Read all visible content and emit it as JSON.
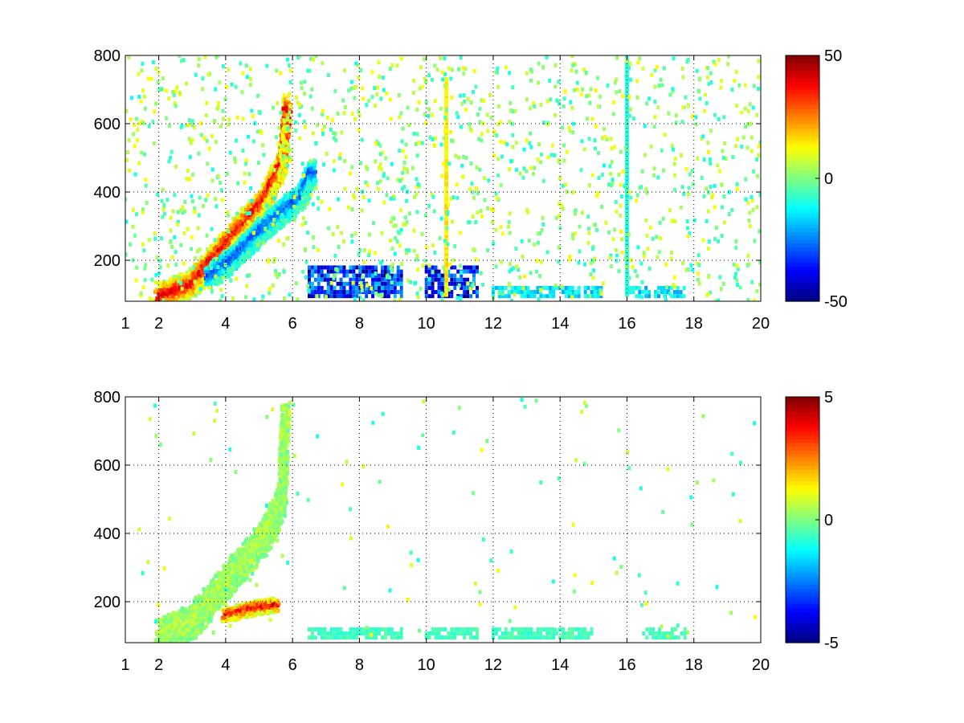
{
  "chart_data": [
    {
      "type": "heatmap",
      "title": "",
      "xlabel": "",
      "ylabel": "",
      "xlim": [
        1,
        20
      ],
      "ylim": [
        80,
        800
      ],
      "x_ticks": [
        1,
        2,
        4,
        6,
        8,
        10,
        12,
        14,
        16,
        18,
        20
      ],
      "x_tick_labels": [
        "1",
        "2",
        "4",
        "6",
        "8",
        "10",
        "12",
        "14",
        "16",
        "18",
        "20"
      ],
      "y_ticks": [
        200,
        400,
        600,
        800
      ],
      "y_tick_labels": [
        "200",
        "400",
        "600",
        "800"
      ],
      "grid": true,
      "colormap": "jet",
      "colorbar": {
        "min": -50,
        "max": 50,
        "ticks": [
          50,
          0,
          -50
        ],
        "tick_labels": [
          "50",
          "0",
          "-50"
        ]
      },
      "features": [
        {
          "kind": "ridge",
          "points": [
            [
              2.0,
              90
            ],
            [
              3.0,
              130
            ],
            [
              3.8,
              220
            ],
            [
              4.5,
              300
            ],
            [
              5.2,
              380
            ],
            [
              5.7,
              480
            ],
            [
              5.85,
              650
            ]
          ],
          "value": 40,
          "width": 40
        },
        {
          "kind": "ridge",
          "points": [
            [
              3.5,
              150
            ],
            [
              4.3,
              210
            ],
            [
              5.0,
              280
            ],
            [
              5.7,
              340
            ],
            [
              6.3,
              390
            ],
            [
              6.6,
              460
            ]
          ],
          "value": -30,
          "width": 35
        },
        {
          "kind": "band",
          "y": [
            95,
            180
          ],
          "segments": [
            [
              6.5,
              9.3
            ],
            [
              10.0,
              11.6
            ]
          ],
          "value": -45
        },
        {
          "kind": "band",
          "y": [
            95,
            130
          ],
          "segments": [
            [
              12.0,
              15.3
            ],
            [
              16.0,
              17.8
            ]
          ],
          "value": -20
        },
        {
          "kind": "line",
          "x": 10.6,
          "y": [
            100,
            730
          ],
          "value": 15
        },
        {
          "kind": "line",
          "x": 16.0,
          "y": [
            100,
            800
          ],
          "value": -10
        }
      ]
    },
    {
      "type": "heatmap",
      "title": "",
      "xlabel": "",
      "ylabel": "",
      "xlim": [
        1,
        20
      ],
      "ylim": [
        80,
        800
      ],
      "x_ticks": [
        1,
        2,
        4,
        6,
        8,
        10,
        12,
        14,
        16,
        18,
        20
      ],
      "x_tick_labels": [
        "1",
        "2",
        "4",
        "6",
        "8",
        "10",
        "12",
        "14",
        "16",
        "18",
        "20"
      ],
      "y_ticks": [
        200,
        400,
        600,
        800
      ],
      "y_tick_labels": [
        "200",
        "400",
        "600",
        "800"
      ],
      "grid": true,
      "colormap": "jet",
      "colorbar": {
        "min": -5,
        "max": 5,
        "ticks": [
          5,
          0,
          -5
        ],
        "tick_labels": [
          "5",
          "0",
          "-5"
        ]
      },
      "features": [
        {
          "kind": "ridge",
          "points": [
            [
              2.0,
              100
            ],
            [
              3.0,
              140
            ],
            [
              3.8,
              230
            ],
            [
              4.5,
              310
            ],
            [
              5.2,
              390
            ],
            [
              5.7,
              500
            ],
            [
              5.8,
              760
            ]
          ],
          "value": 0.5,
          "width": 50
        },
        {
          "kind": "ridge",
          "points": [
            [
              4.0,
              160
            ],
            [
              4.8,
              180
            ],
            [
              5.5,
              190
            ]
          ],
          "value": 4,
          "width": 20
        },
        {
          "kind": "band",
          "y": [
            95,
            130
          ],
          "segments": [
            [
              6.5,
              9.3
            ],
            [
              10.0,
              11.6
            ],
            [
              12.0,
              15.0
            ],
            [
              16.5,
              17.8
            ]
          ],
          "value": -0.8
        }
      ]
    }
  ]
}
